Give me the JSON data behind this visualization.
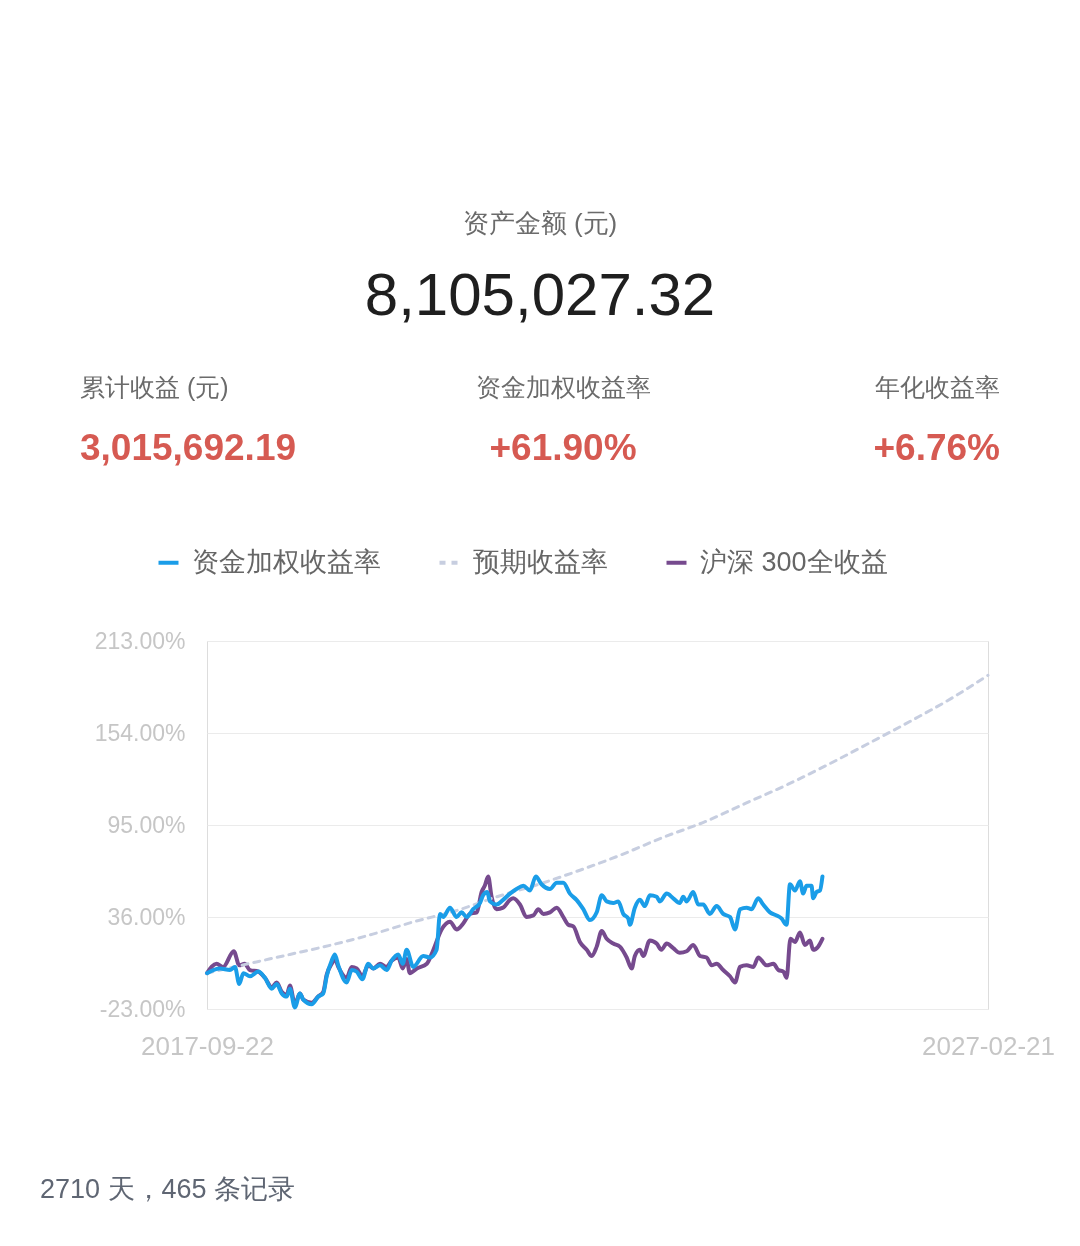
{
  "chart_data": {
    "type": "line",
    "annotations": [
      "资产金额 (元)",
      "8,105,027.32",
      "累计收益 (元)",
      "资金加权收益率",
      "年化收益率",
      "3,015,692.19",
      "+61.90%",
      "+6.76%",
      "2710 天，465 条记录"
    ],
    "xlim": [
      "2017-09-22",
      "2027-02-21"
    ],
    "xticks": [
      "2017-09-22",
      "2027-02-21"
    ],
    "ylim": [
      -23,
      213
    ],
    "yticks": [
      {
        "value": -23,
        "label": "-23.00%"
      },
      {
        "value": 36,
        "label": "36.00%"
      },
      {
        "value": 95,
        "label": "95.00%"
      },
      {
        "value": 154,
        "label": "154.00%"
      },
      {
        "value": 213,
        "label": "213.00%"
      }
    ],
    "grid": "y",
    "legend": "top",
    "series": [
      {
        "name": "资金加权收益率",
        "color": "#1a9de8",
        "line_style": "solid",
        "x": [
          "2017-09-22",
          "2017-11-18",
          "2018-01-01",
          "2018-01-23",
          "2018-02-11",
          "2018-03-01",
          "2018-03-30",
          "2018-05-06",
          "2018-06-04",
          "2018-07-04",
          "2018-07-26",
          "2018-08-17",
          "2018-09-08",
          "2018-09-22",
          "2018-10-14",
          "2018-11-05",
          "2018-11-20",
          "2018-12-27",
          "2019-01-25",
          "2019-02-16",
          "2019-03-03",
          "2019-03-25",
          "2019-04-08",
          "2019-04-23",
          "2019-05-30",
          "2019-06-21",
          "2019-07-13",
          "2019-08-07",
          "2019-09-02",
          "2019-09-24",
          "2019-10-24",
          "2019-11-22",
          "2019-12-14",
          "2020-01-12",
          "2020-02-01",
          "2020-02-18",
          "2020-03-18",
          "2020-05-01",
          "2020-05-31",
          "2020-06-29",
          "2020-07-14",
          "2020-07-28",
          "2020-08-27",
          "2020-09-25",
          "2020-10-17",
          "2020-11-08",
          "2020-12-07",
          "2021-01-06",
          "2021-01-20",
          "2021-02-07",
          "2021-02-19",
          "2021-03-20",
          "2021-04-18",
          "2021-05-18",
          "2021-06-16",
          "2021-07-16",
          "2021-08-14",
          "2021-09-09",
          "2021-10-04",
          "2021-11-10",
          "2021-12-10",
          "2022-01-08",
          "2022-02-06",
          "2022-03-07",
          "2022-04-06",
          "2022-05-05",
          "2022-06-04",
          "2022-06-26",
          "2022-07-18",
          "2022-08-16",
          "2022-09-07",
          "2022-09-29",
          "2022-10-21",
          "2022-10-28",
          "2022-11-19",
          "2022-12-11",
          "2023-01-02",
          "2023-01-24",
          "2023-02-23",
          "2023-03-09",
          "2023-04-08",
          "2023-05-07",
          "2023-06-05",
          "2023-06-20",
          "2023-07-05",
          "2023-08-03",
          "2023-08-25",
          "2023-09-16",
          "2023-10-15",
          "2023-11-14",
          "2023-12-13",
          "2024-01-12",
          "2024-02-03",
          "2024-02-25",
          "2024-03-25",
          "2024-04-16",
          "2024-05-15",
          "2024-06-06",
          "2024-07-06",
          "2024-08-04",
          "2024-08-26",
          "2024-09-17",
          "2024-10-02",
          "2024-10-24",
          "2024-11-15",
          "2024-11-29",
          "2024-12-14",
          "2025-01-05",
          "2025-01-12",
          "2025-01-27",
          "2025-02-11",
          "2025-02-22"
        ],
        "values": [
          0,
          3,
          2,
          4,
          -7,
          0,
          -2,
          1,
          -3,
          -10,
          -7,
          -13,
          -15,
          -10,
          -22,
          -13,
          -17,
          -20,
          -15,
          -13,
          -2,
          8,
          12,
          5,
          -6,
          2,
          1,
          -4,
          6,
          3,
          5,
          2,
          8,
          12,
          6,
          15,
          4,
          11,
          10,
          15,
          38,
          36,
          42,
          36,
          39,
          36,
          41,
          45,
          50,
          52,
          46,
          44,
          47,
          51,
          54,
          56,
          53,
          62,
          57,
          54,
          58,
          58,
          51,
          47,
          41,
          34,
          39,
          50,
          46,
          45,
          46,
          38,
          35,
          31,
          42,
          47,
          43,
          50,
          49,
          46,
          51,
          48,
          45,
          49,
          46,
          52,
          44,
          44,
          38,
          43,
          38,
          36,
          28,
          41,
          42,
          41,
          48,
          44,
          39,
          37,
          35,
          31,
          57,
          53,
          59,
          51,
          56,
          56,
          48,
          52,
          53,
          62
        ]
      },
      {
        "name": "预期收益率",
        "color": "#c7cee0",
        "line_style": "dashed",
        "x": [
          "2017-09-22",
          "2018-03-22",
          "2018-09-22",
          "2019-03-22",
          "2019-09-22",
          "2020-03-22",
          "2020-09-22",
          "2021-03-22",
          "2021-09-22",
          "2022-03-22",
          "2022-09-22",
          "2023-03-22",
          "2023-09-22",
          "2024-03-22",
          "2024-09-22",
          "2025-03-22",
          "2025-09-22",
          "2026-03-22",
          "2026-09-22",
          "2027-02-21"
        ],
        "values": [
          0,
          6,
          12,
          18,
          25,
          33,
          40,
          49,
          57,
          66,
          76,
          87,
          97,
          109,
          121,
          134,
          148,
          162,
          177,
          191
        ]
      },
      {
        "name": "沪深 300全收益",
        "color": "#764a8e",
        "line_style": "solid",
        "x": [
          "2017-09-22",
          "2017-11-03",
          "2017-12-02",
          "2018-01-18",
          "2018-02-11",
          "2018-03-07",
          "2018-03-30",
          "2018-05-06",
          "2018-06-04",
          "2018-07-04",
          "2018-07-26",
          "2018-08-17",
          "2018-09-08",
          "2018-09-22",
          "2018-10-14",
          "2018-11-05",
          "2018-11-20",
          "2018-12-27",
          "2019-01-25",
          "2019-02-16",
          "2019-03-03",
          "2019-03-25",
          "2019-04-08",
          "2019-04-23",
          "2019-05-30",
          "2019-06-21",
          "2019-07-13",
          "2019-08-07",
          "2019-09-02",
          "2019-09-24",
          "2019-10-24",
          "2019-11-22",
          "2019-12-14",
          "2020-01-12",
          "2020-02-01",
          "2020-02-18",
          "2020-03-03",
          "2020-04-03",
          "2020-05-17",
          "2020-06-15",
          "2020-07-21",
          "2020-08-27",
          "2020-09-25",
          "2020-10-25",
          "2020-11-23",
          "2020-12-23",
          "2021-01-13",
          "2021-01-27",
          "2021-02-11",
          "2021-02-26",
          "2021-03-20",
          "2021-04-18",
          "2021-05-18",
          "2021-06-01",
          "2021-07-01",
          "2021-07-30",
          "2021-08-29",
          "2021-09-20",
          "2021-10-12",
          "2021-11-10",
          "2021-12-10",
          "2022-01-08",
          "2022-01-30",
          "2022-02-21",
          "2022-03-22",
          "2022-04-21",
          "2022-05-13",
          "2022-06-04",
          "2022-06-26",
          "2022-07-18",
          "2022-08-16",
          "2022-09-14",
          "2022-10-14",
          "2022-11-05",
          "2022-11-19",
          "2022-12-11",
          "2022-12-26",
          "2023-01-24",
          "2023-02-23",
          "2023-03-16",
          "2023-04-08",
          "2023-05-07",
          "2023-06-05",
          "2023-07-05",
          "2023-08-03",
          "2023-09-02",
          "2023-10-01",
          "2023-10-23",
          "2023-11-14",
          "2023-12-13",
          "2024-01-12",
          "2024-02-03",
          "2024-02-25",
          "2024-03-25",
          "2024-04-24",
          "2024-05-15",
          "2024-06-21",
          "2024-07-21",
          "2024-08-12",
          "2024-09-03",
          "2024-09-17",
          "2024-10-04",
          "2024-10-24",
          "2024-11-15",
          "2024-12-07",
          "2024-12-29",
          "2025-01-12",
          "2025-02-03",
          "2025-02-22"
        ],
        "values": [
          0,
          6,
          4,
          14,
          5,
          6,
          2,
          1,
          -3,
          -9,
          -6,
          -12,
          -14,
          -8,
          -20,
          -13,
          -17,
          -19,
          -15,
          -12,
          -1,
          6,
          9,
          4,
          -3,
          4,
          3,
          -2,
          5,
          3,
          6,
          4,
          8,
          10,
          3,
          9,
          0,
          3,
          6,
          15,
          28,
          33,
          28,
          32,
          38,
          39,
          52,
          56,
          62,
          49,
          41,
          42,
          47,
          48,
          44,
          36,
          37,
          41,
          38,
          39,
          42,
          36,
          31,
          30,
          20,
          15,
          11,
          17,
          27,
          22,
          19,
          17,
          10,
          3,
          11,
          15,
          11,
          21,
          19,
          15,
          19,
          16,
          13,
          14,
          18,
          11,
          10,
          5,
          6,
          2,
          -2,
          -6,
          4,
          5,
          4,
          10,
          5,
          6,
          2,
          1,
          -3,
          22,
          20,
          26,
          18,
          21,
          15,
          17,
          22
        ]
      }
    ]
  }
}
